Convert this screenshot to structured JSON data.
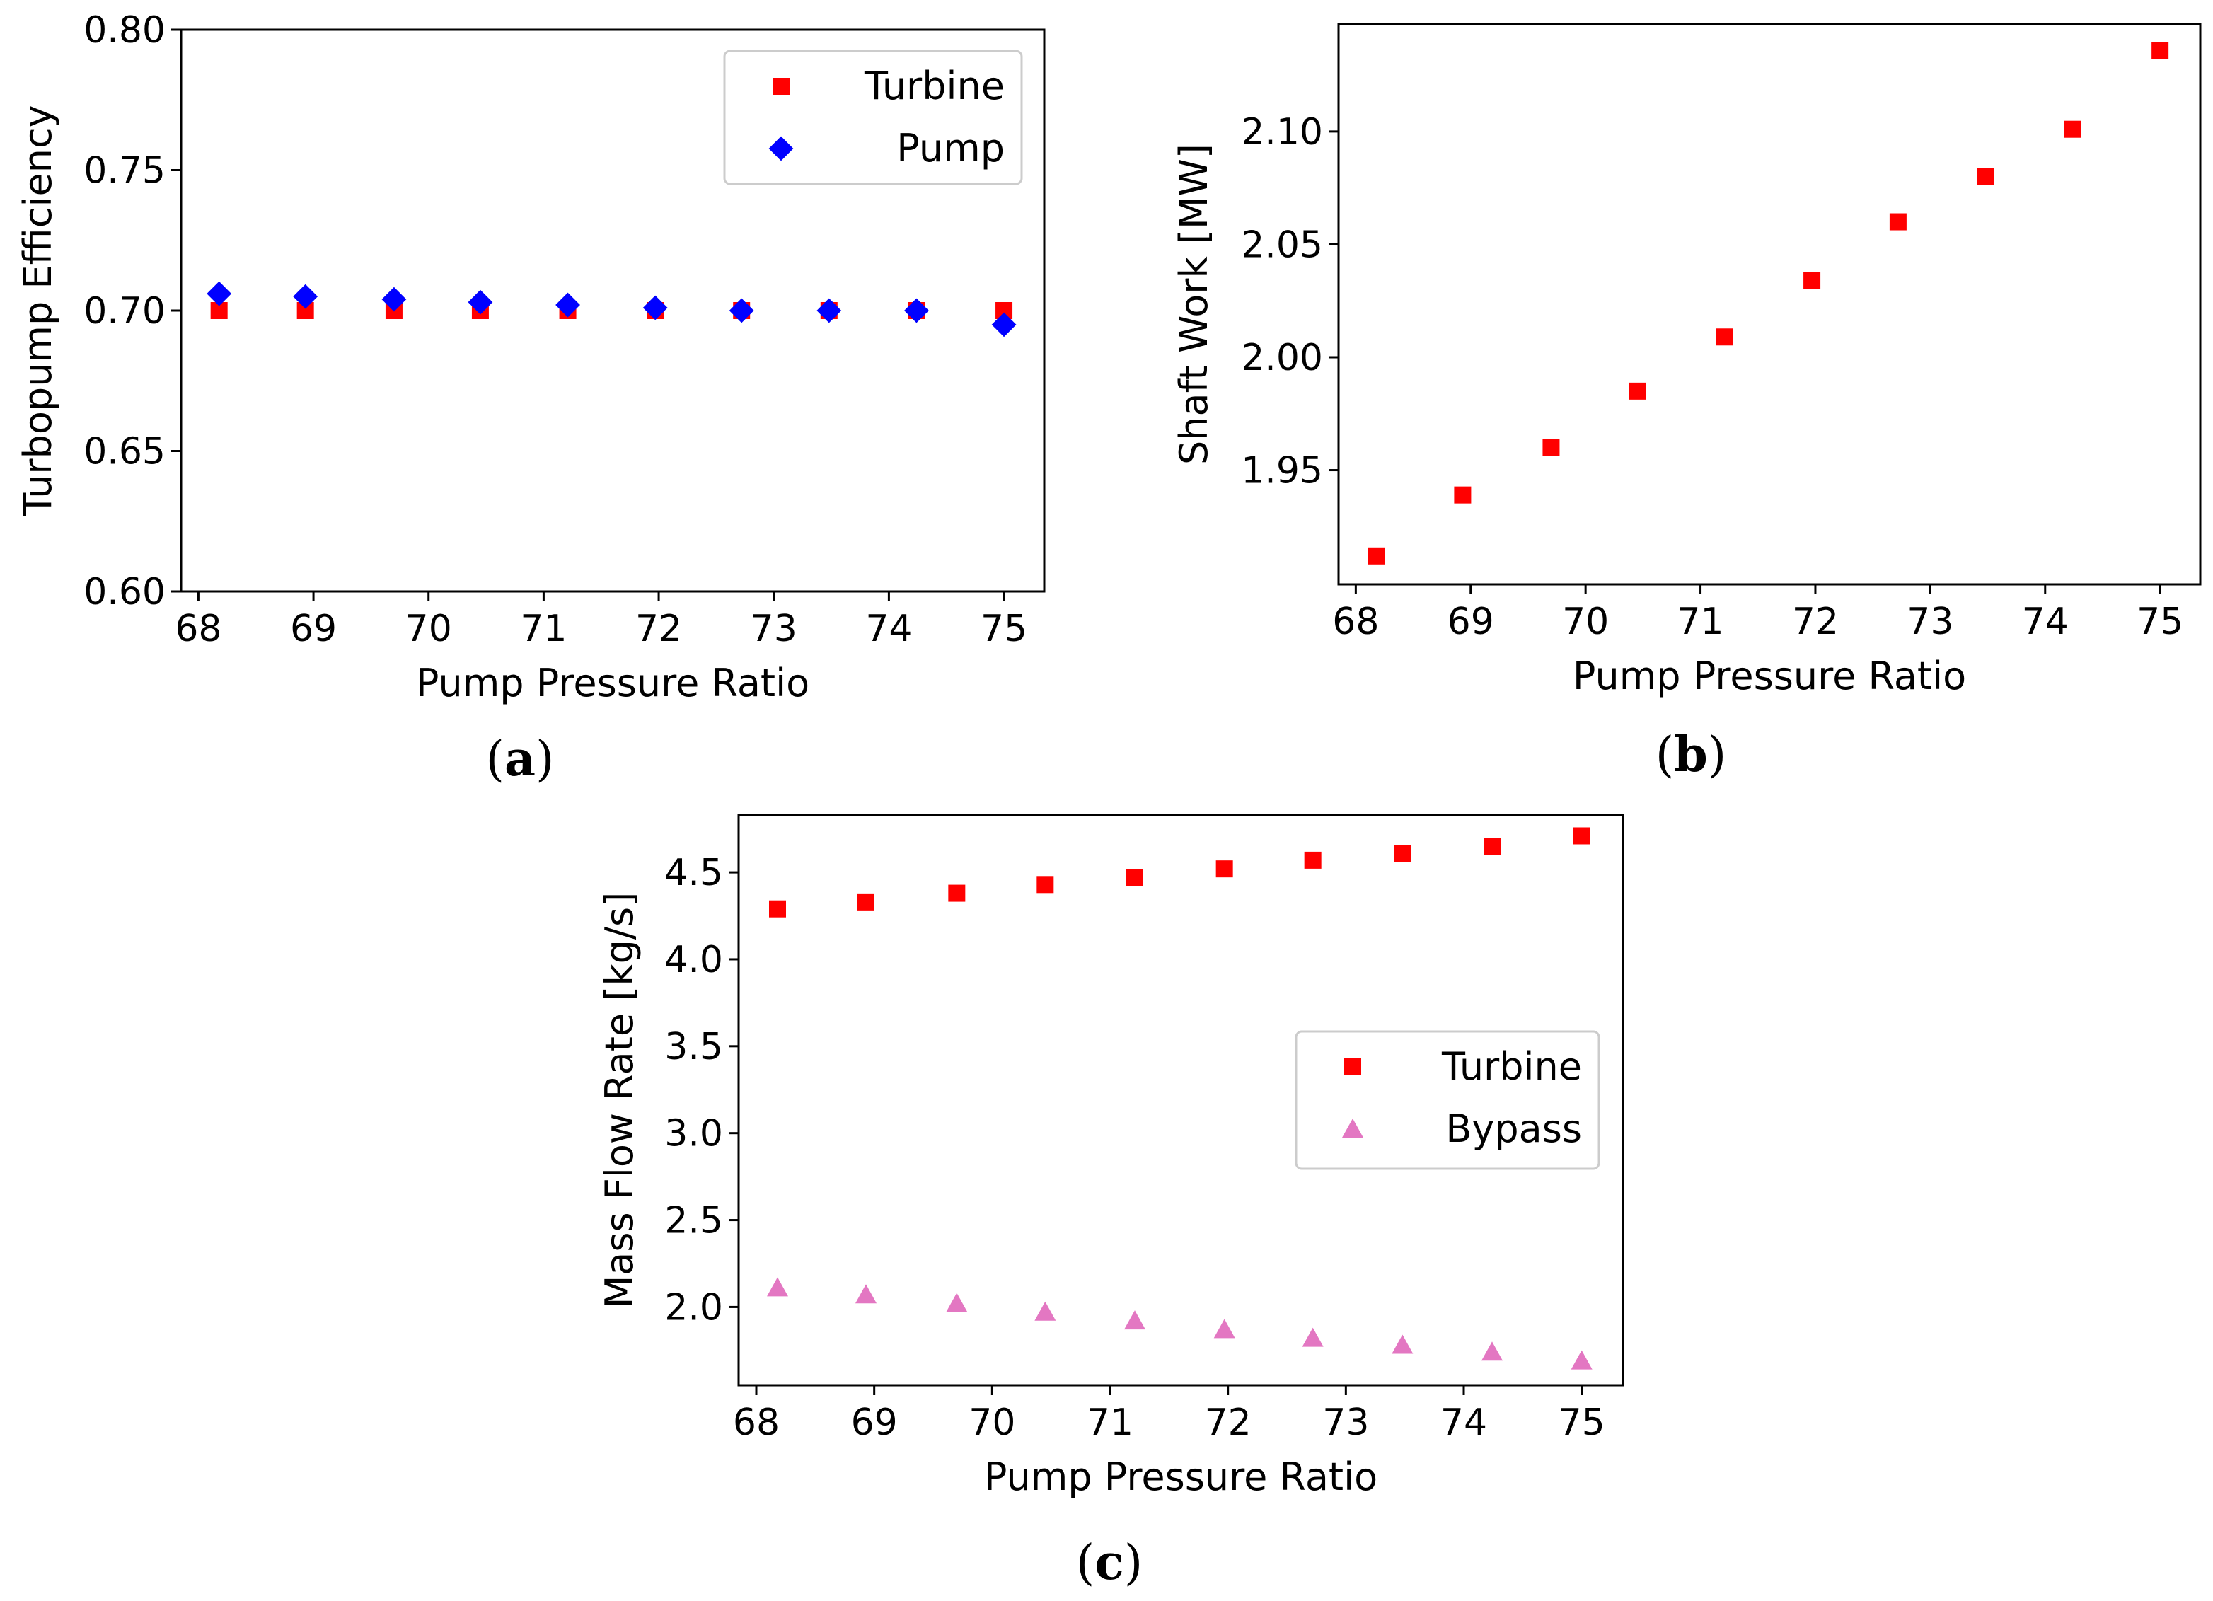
{
  "chart_data": [
    {
      "id": "a",
      "type": "scatter",
      "caption_prefix": "(",
      "caption_letter": "a",
      "caption_suffix": ")",
      "xlabel": "Pump Pressure Ratio",
      "ylabel": "Turbopump Efficiency",
      "xlim": [
        67.85,
        75.35
      ],
      "ylim": [
        0.6,
        0.8
      ],
      "xticks": [
        68,
        69,
        70,
        71,
        72,
        73,
        74,
        75
      ],
      "xtick_labels": [
        "68",
        "69",
        "70",
        "71",
        "72",
        "73",
        "74",
        "75"
      ],
      "yticks": [
        0.6,
        0.65,
        0.7,
        0.75,
        0.8
      ],
      "ytick_labels": [
        "0.60",
        "0.65",
        "0.70",
        "0.75",
        "0.80"
      ],
      "legend_position": "top-right",
      "series": [
        {
          "name": "Turbine",
          "marker": "square",
          "color": "#ff0000",
          "x": [
            68.18,
            68.93,
            69.7,
            70.45,
            71.21,
            71.97,
            72.72,
            73.48,
            74.24,
            75.0
          ],
          "y": [
            0.7,
            0.7,
            0.7,
            0.7,
            0.7,
            0.7,
            0.7,
            0.7,
            0.7,
            0.7
          ]
        },
        {
          "name": "Pump",
          "marker": "diamond",
          "color": "#0000ff",
          "x": [
            68.18,
            68.93,
            69.7,
            70.45,
            71.21,
            71.97,
            72.72,
            73.48,
            74.24,
            75.0
          ],
          "y": [
            0.706,
            0.705,
            0.704,
            0.703,
            0.702,
            0.701,
            0.7,
            0.7,
            0.7,
            0.695
          ]
        }
      ]
    },
    {
      "id": "b",
      "type": "scatter",
      "caption_prefix": "(",
      "caption_letter": "b",
      "caption_suffix": ")",
      "xlabel": "Pump Pressure Ratio",
      "ylabel": "Shaft Work [MW]",
      "xlim": [
        67.85,
        75.35
      ],
      "ylim": [
        1.8994,
        2.1476
      ],
      "xticks": [
        68,
        69,
        70,
        71,
        72,
        73,
        74,
        75
      ],
      "xtick_labels": [
        "68",
        "69",
        "70",
        "71",
        "72",
        "73",
        "74",
        "75"
      ],
      "yticks": [
        1.95,
        2.0,
        2.05,
        2.1
      ],
      "ytick_labels": [
        "1.95",
        "2.00",
        "2.05",
        "2.10"
      ],
      "legend_position": "none",
      "series": [
        {
          "name": "Shaft Work",
          "marker": "square",
          "color": "#ff0000",
          "x": [
            68.18,
            68.93,
            69.7,
            70.45,
            71.21,
            71.97,
            72.72,
            73.48,
            74.24,
            75.0
          ],
          "y": [
            1.912,
            1.939,
            1.96,
            1.985,
            2.009,
            2.034,
            2.06,
            2.08,
            2.101,
            2.136
          ]
        }
      ]
    },
    {
      "id": "c",
      "type": "scatter",
      "caption_prefix": "(",
      "caption_letter": "c",
      "caption_suffix": ")",
      "xlabel": "Pump Pressure Ratio",
      "ylabel": "Mass Flow Rate [kg/s]",
      "xlim": [
        67.85,
        75.35
      ],
      "ylim": [
        1.55,
        4.83
      ],
      "xticks": [
        68,
        69,
        70,
        71,
        72,
        73,
        74,
        75
      ],
      "xtick_labels": [
        "68",
        "69",
        "70",
        "71",
        "72",
        "73",
        "74",
        "75"
      ],
      "yticks": [
        2.0,
        2.5,
        3.0,
        3.5,
        4.0,
        4.5
      ],
      "ytick_labels": [
        "2.0",
        "2.5",
        "3.0",
        "3.5",
        "4.0",
        "4.5"
      ],
      "legend_position": "center-right",
      "series": [
        {
          "name": "Turbine",
          "marker": "square",
          "color": "#ff0000",
          "x": [
            68.18,
            68.93,
            69.7,
            70.45,
            71.21,
            71.97,
            72.72,
            73.48,
            74.24,
            75.0
          ],
          "y": [
            4.29,
            4.33,
            4.38,
            4.43,
            4.47,
            4.52,
            4.57,
            4.61,
            4.65,
            4.71
          ]
        },
        {
          "name": "Bypass",
          "marker": "triangle",
          "color": "#e377c2",
          "x": [
            68.18,
            68.93,
            69.7,
            70.45,
            71.21,
            71.97,
            72.72,
            73.48,
            74.24,
            75.0
          ],
          "y": [
            2.11,
            2.07,
            2.02,
            1.97,
            1.92,
            1.87,
            1.82,
            1.78,
            1.74,
            1.69
          ]
        }
      ]
    }
  ]
}
